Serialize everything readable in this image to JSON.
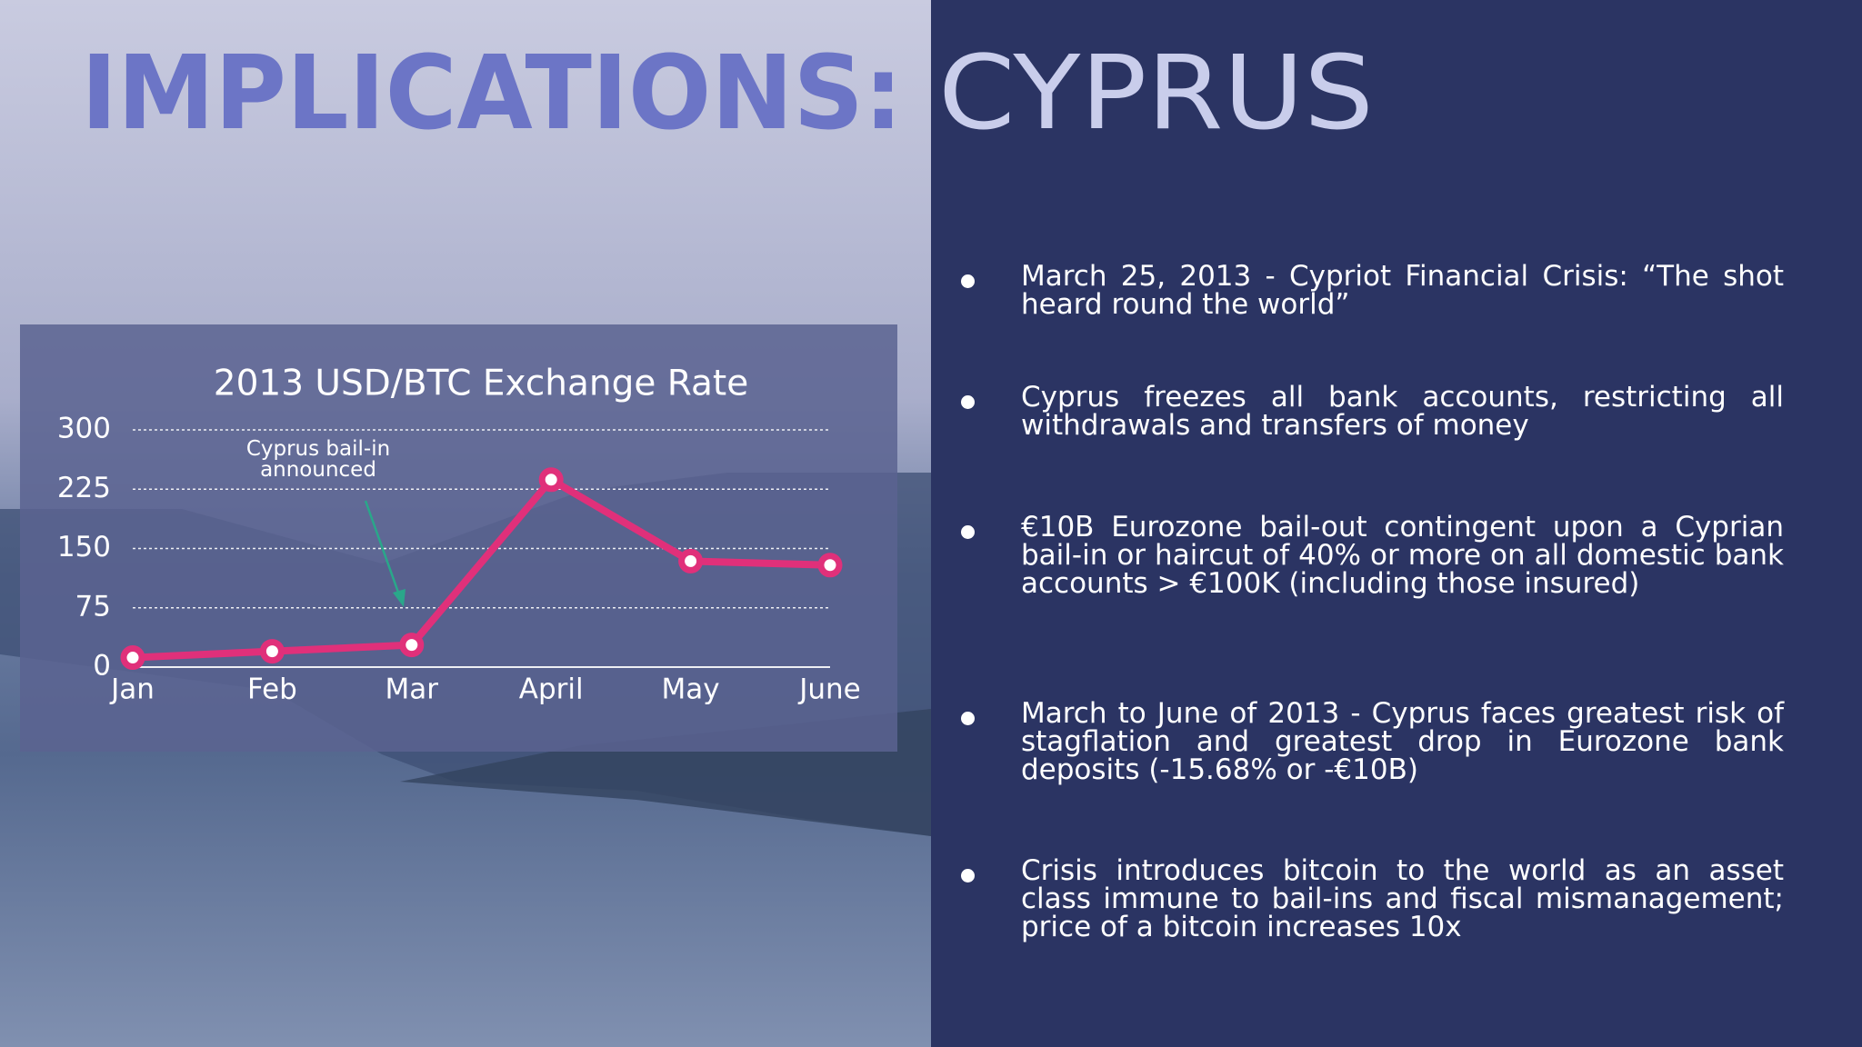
{
  "title_bold": "IMPLICATIONS:",
  "title_light": "CYPRUS",
  "bullets": [
    "March 25, 2013 - Cypriot Financial Crisis: “The shot heard round the world”",
    "Cyprus freezes all bank accounts, restricting all withdrawals and transfers of money",
    "€10B Eurozone bail-out contingent upon a Cyprian bail-in or haircut of 40% or more on all domestic bank accounts > €100K (including those insured)",
    "March to June of 2013 - Cyprus faces greatest risk of stagflation and greatest drop in Eurozone bank deposits (-15.68% or -€10B)",
    "Crisis introduces bitcoin to the world as an asset class immune to bail-ins and fiscal mismanagement; price of a bitcoin increases 10x"
  ],
  "chart_data": {
    "type": "line",
    "title": "2013 USD/BTC Exchange Rate",
    "categories": [
      "Jan",
      "Feb",
      "Mar",
      "April",
      "May",
      "June"
    ],
    "values": [
      12,
      20,
      28,
      237,
      134,
      129
    ],
    "color": "#e0307a",
    "ylim": [
      0,
      300
    ],
    "yticks": [
      0,
      75,
      150,
      225,
      300
    ],
    "grid": true,
    "annotation": "Cyprus bail-in announced"
  }
}
